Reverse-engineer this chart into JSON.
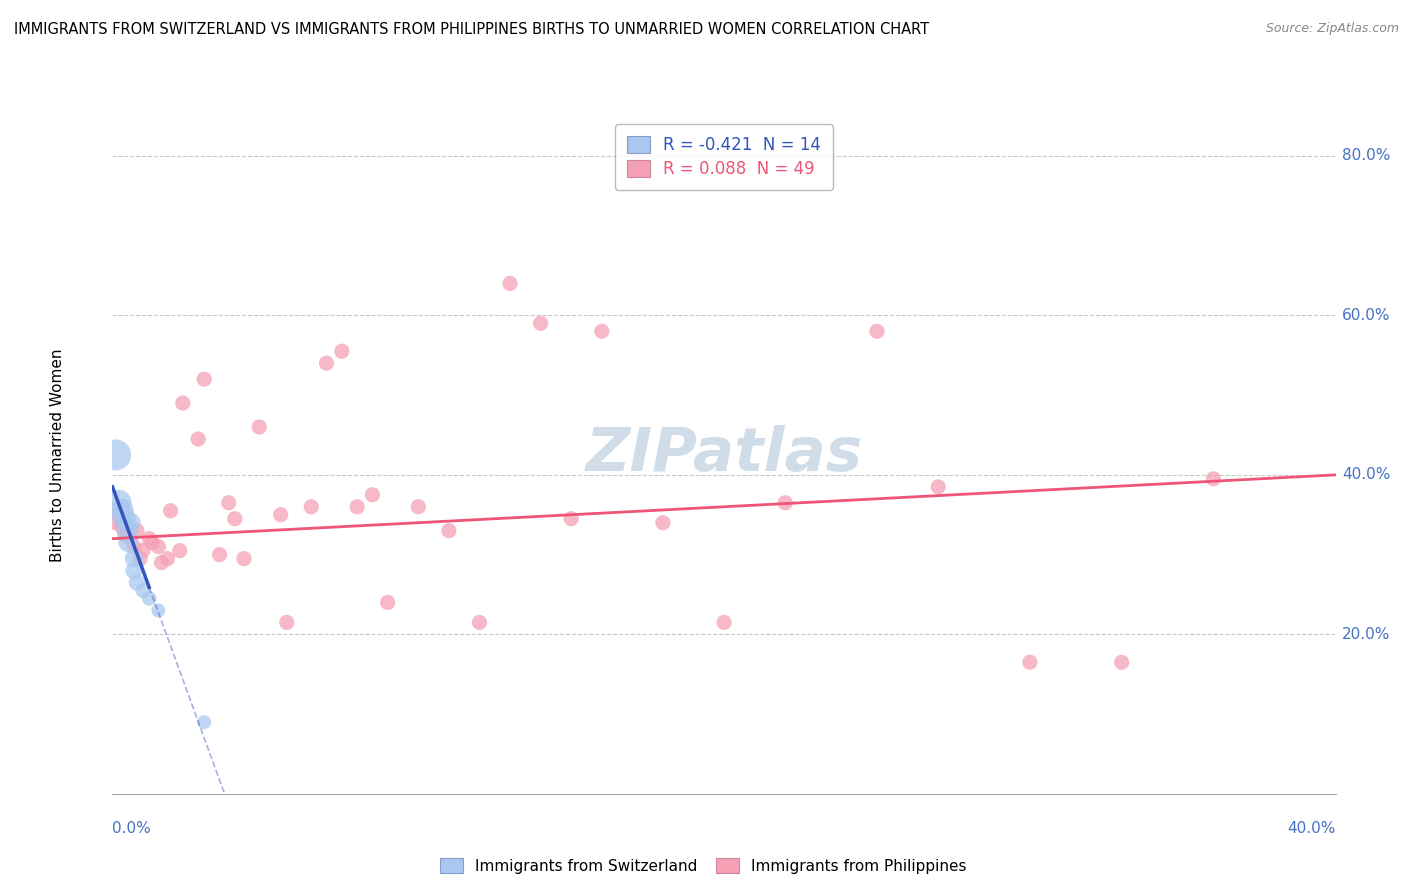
{
  "title": "IMMIGRANTS FROM SWITZERLAND VS IMMIGRANTS FROM PHILIPPINES BIRTHS TO UNMARRIED WOMEN CORRELATION CHART",
  "source": "Source: ZipAtlas.com",
  "ylabel": "Births to Unmarried Women",
  "xmin": 0.0,
  "xmax": 0.4,
  "ymin": 0.0,
  "ymax": 0.85,
  "legend1_r": "-0.421",
  "legend1_n": "14",
  "legend2_r": "0.088",
  "legend2_n": "49",
  "swiss_color": "#a8c8f0",
  "phil_color": "#f5a0b5",
  "swiss_line_color": "#3355bb",
  "phil_line_color": "#ee5577",
  "swiss_scatter": [
    [
      0.001,
      0.425
    ],
    [
      0.002,
      0.365
    ],
    [
      0.003,
      0.355
    ],
    [
      0.004,
      0.345
    ],
    [
      0.005,
      0.33
    ],
    [
      0.005,
      0.315
    ],
    [
      0.006,
      0.34
    ],
    [
      0.007,
      0.295
    ],
    [
      0.007,
      0.28
    ],
    [
      0.008,
      0.265
    ],
    [
      0.01,
      0.255
    ],
    [
      0.012,
      0.245
    ],
    [
      0.015,
      0.23
    ],
    [
      0.03,
      0.09
    ]
  ],
  "swiss_sizes": [
    500,
    350,
    300,
    250,
    220,
    180,
    200,
    170,
    150,
    140,
    120,
    110,
    100,
    100
  ],
  "phil_scatter": [
    [
      0.001,
      0.34
    ],
    [
      0.002,
      0.35
    ],
    [
      0.003,
      0.335
    ],
    [
      0.003,
      0.36
    ],
    [
      0.004,
      0.325
    ],
    [
      0.005,
      0.33
    ],
    [
      0.006,
      0.32
    ],
    [
      0.007,
      0.31
    ],
    [
      0.008,
      0.33
    ],
    [
      0.009,
      0.295
    ],
    [
      0.01,
      0.305
    ],
    [
      0.012,
      0.32
    ],
    [
      0.013,
      0.315
    ],
    [
      0.015,
      0.31
    ],
    [
      0.016,
      0.29
    ],
    [
      0.018,
      0.295
    ],
    [
      0.019,
      0.355
    ],
    [
      0.022,
      0.305
    ],
    [
      0.023,
      0.49
    ],
    [
      0.028,
      0.445
    ],
    [
      0.03,
      0.52
    ],
    [
      0.035,
      0.3
    ],
    [
      0.038,
      0.365
    ],
    [
      0.04,
      0.345
    ],
    [
      0.043,
      0.295
    ],
    [
      0.048,
      0.46
    ],
    [
      0.055,
      0.35
    ],
    [
      0.057,
      0.215
    ],
    [
      0.065,
      0.36
    ],
    [
      0.07,
      0.54
    ],
    [
      0.075,
      0.555
    ],
    [
      0.08,
      0.36
    ],
    [
      0.085,
      0.375
    ],
    [
      0.09,
      0.24
    ],
    [
      0.1,
      0.36
    ],
    [
      0.11,
      0.33
    ],
    [
      0.12,
      0.215
    ],
    [
      0.13,
      0.64
    ],
    [
      0.14,
      0.59
    ],
    [
      0.15,
      0.345
    ],
    [
      0.16,
      0.58
    ],
    [
      0.18,
      0.34
    ],
    [
      0.2,
      0.215
    ],
    [
      0.22,
      0.365
    ],
    [
      0.25,
      0.58
    ],
    [
      0.27,
      0.385
    ],
    [
      0.3,
      0.165
    ],
    [
      0.33,
      0.165
    ],
    [
      0.36,
      0.395
    ]
  ],
  "background_color": "#ffffff",
  "grid_color": "#c8c8c8",
  "watermark": "ZIPatlas"
}
